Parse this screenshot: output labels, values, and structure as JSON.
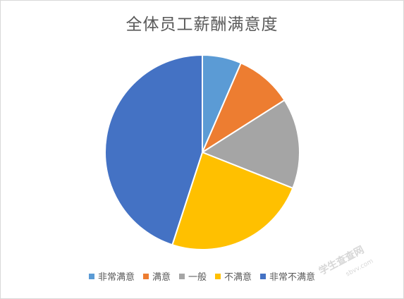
{
  "chart_data": {
    "type": "pie",
    "title": "全体员工薪酬满意度",
    "categories": [
      "非常满意",
      "满意",
      "一般",
      "不满意",
      "非常不满意"
    ],
    "values": [
      6.5,
      9.5,
      15,
      24,
      45
    ],
    "colors": [
      "#5b9bd5",
      "#ed7d31",
      "#a5a5a5",
      "#ffc000",
      "#4472c4"
    ],
    "legend_position": "bottom"
  },
  "watermark": {
    "text": "学生查查网",
    "sub": "sbvv.com"
  }
}
